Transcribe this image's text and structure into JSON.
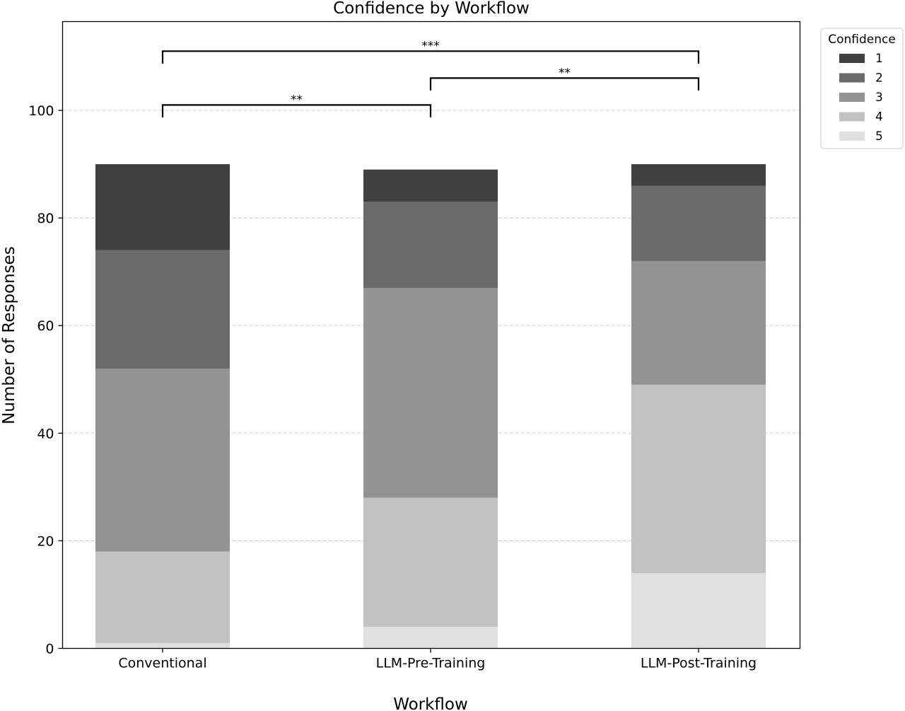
{
  "chart_data": {
    "type": "bar",
    "stacked": true,
    "title": "Confidence by Workflow",
    "xlabel": "Workflow",
    "ylabel": "Number of Responses",
    "categories": [
      "Conventional",
      "LLM-Pre-Training",
      "LLM-Post-Training"
    ],
    "ylim": [
      0,
      116.5
    ],
    "yticks": [
      0,
      20,
      40,
      60,
      80,
      100
    ],
    "grid": "y-dashed",
    "legend": {
      "title": "Confidence",
      "placement": "upper-right-outside"
    },
    "series": [
      {
        "name": "5",
        "color": "#e0e0e0",
        "values": [
          1,
          4,
          14
        ]
      },
      {
        "name": "4",
        "color": "#c2c2c2",
        "values": [
          17,
          24,
          35
        ]
      },
      {
        "name": "3",
        "color": "#939393",
        "values": [
          34,
          39,
          23
        ]
      },
      {
        "name": "2",
        "color": "#6a6a6a",
        "values": [
          22,
          16,
          14
        ]
      },
      {
        "name": "1",
        "color": "#404040",
        "values": [
          16,
          6,
          4
        ]
      }
    ],
    "legend_order": [
      "1",
      "2",
      "3",
      "4",
      "5"
    ],
    "significance": [
      {
        "from": 0,
        "to": 1,
        "y": 101,
        "label": "**"
      },
      {
        "from": 1,
        "to": 2,
        "y": 106,
        "label": "**"
      },
      {
        "from": 0,
        "to": 2,
        "y": 111,
        "label": "***"
      }
    ]
  }
}
